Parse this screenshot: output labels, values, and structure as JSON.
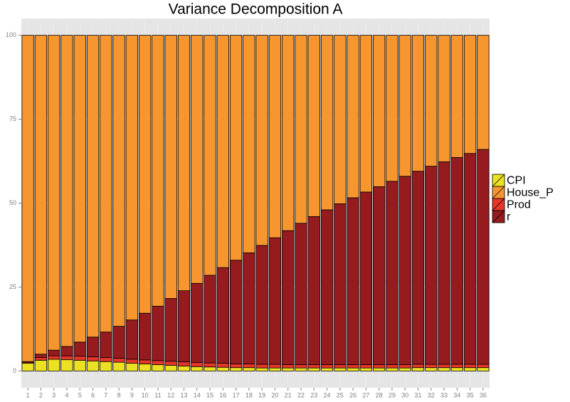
{
  "chart_data": {
    "type": "stacked-bar",
    "title": "Variance Decomposition A",
    "categories": [
      "1",
      "2",
      "3",
      "4",
      "5",
      "6",
      "7",
      "8",
      "9",
      "10",
      "11",
      "12",
      "13",
      "14",
      "15",
      "16",
      "17",
      "18",
      "19",
      "20",
      "21",
      "22",
      "23",
      "24",
      "25",
      "26",
      "27",
      "28",
      "29",
      "30",
      "31",
      "32",
      "33",
      "34",
      "35",
      "36"
    ],
    "series": [
      {
        "name": "CPI",
        "color": "#ebe021",
        "values": [
          2.3,
          3.2,
          3.5,
          3.4,
          3.2,
          3.0,
          2.8,
          2.6,
          2.3,
          2.1,
          1.9,
          1.7,
          1.5,
          1.3,
          1.2,
          1.1,
          1.0,
          1.0,
          0.9,
          0.9,
          0.9,
          0.9,
          0.9,
          0.9,
          0.9,
          0.9,
          0.9,
          0.9,
          0.9,
          0.9,
          1.0,
          1.0,
          1.0,
          1.0,
          1.0,
          1.0
        ]
      },
      {
        "name": "Prod",
        "color": "#e8352a",
        "values": [
          0.3,
          0.8,
          1.0,
          1.1,
          1.2,
          1.2,
          1.2,
          1.2,
          1.2,
          1.2,
          1.2,
          1.2,
          1.2,
          1.2,
          1.2,
          1.2,
          1.1,
          1.1,
          1.1,
          1.1,
          1.0,
          1.0,
          1.0,
          1.0,
          1.0,
          1.0,
          1.0,
          1.0,
          1.0,
          1.0,
          1.0,
          1.0,
          1.0,
          1.0,
          1.0,
          1.0
        ]
      },
      {
        "name": "r",
        "color": "#951b1f",
        "values": [
          0.2,
          1.0,
          1.7,
          2.8,
          4.2,
          5.9,
          7.6,
          9.5,
          11.7,
          13.9,
          16.2,
          18.7,
          21.2,
          23.6,
          26.1,
          28.5,
          30.9,
          33.1,
          35.4,
          37.7,
          39.9,
          42.1,
          44.1,
          46.1,
          47.9,
          49.7,
          51.4,
          53.0,
          54.6,
          56.1,
          57.5,
          59.0,
          60.3,
          61.6,
          62.8,
          64.0
        ]
      },
      {
        "name": "House_P",
        "color": "#f7962e",
        "values": [
          97.2,
          95.0,
          93.8,
          92.7,
          91.4,
          89.9,
          88.4,
          86.7,
          84.8,
          82.8,
          80.7,
          78.4,
          76.1,
          73.9,
          71.5,
          69.2,
          67.0,
          64.8,
          62.6,
          60.3,
          58.2,
          56.0,
          54.0,
          52.0,
          50.2,
          48.4,
          46.7,
          45.1,
          43.5,
          42.0,
          40.5,
          39.0,
          37.7,
          36.4,
          35.2,
          34.0
        ]
      }
    ],
    "legend_order": [
      "CPI",
      "House_P",
      "Prod",
      "r"
    ],
    "ylim": [
      -5,
      105
    ],
    "yticks": [
      0,
      25,
      50,
      75,
      100
    ],
    "grid": true
  }
}
